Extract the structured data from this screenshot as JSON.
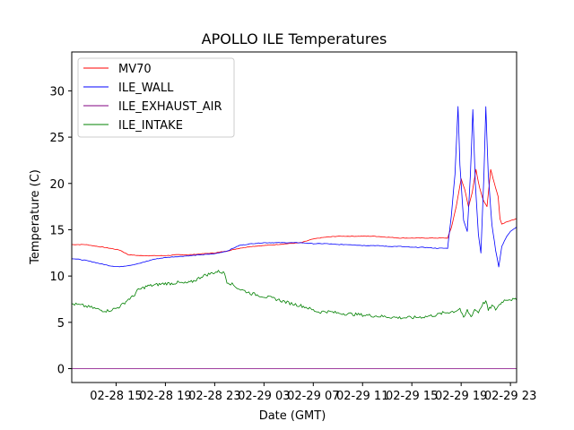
{
  "chart_data": {
    "type": "line",
    "title": "APOLLO ILE Temperatures",
    "xlabel": "Date (GMT)",
    "ylabel": "Temperature (C)",
    "x_unit": "hours since 02-28 00:00 GMT",
    "xlim": [
      11.4,
      47.5
    ],
    "ylim": [
      -1.5,
      34.2
    ],
    "xticks": [
      {
        "value": 15,
        "label": "02-28 15"
      },
      {
        "value": 19,
        "label": "02-28 19"
      },
      {
        "value": 23,
        "label": "02-28 23"
      },
      {
        "value": 27,
        "label": "02-29 03"
      },
      {
        "value": 31,
        "label": "02-29 07"
      },
      {
        "value": 35,
        "label": "02-29 11"
      },
      {
        "value": 39,
        "label": "02-29 15"
      },
      {
        "value": 43,
        "label": "02-29 19"
      },
      {
        "value": 47,
        "label": "02-29 23"
      }
    ],
    "yticks": [
      0,
      5,
      10,
      15,
      20,
      25,
      30
    ],
    "legend_position": "top-left",
    "series": [
      {
        "name": "MV70",
        "color": "#ff0000",
        "points": [
          [
            11.4,
            13.4
          ],
          [
            12.5,
            13.4
          ],
          [
            13.5,
            13.2
          ],
          [
            14.5,
            13.0
          ],
          [
            15.3,
            12.8
          ],
          [
            16.0,
            12.3
          ],
          [
            17.0,
            12.2
          ],
          [
            18.0,
            12.2
          ],
          [
            19.0,
            12.2
          ],
          [
            20.0,
            12.3
          ],
          [
            21.0,
            12.3
          ],
          [
            22.0,
            12.4
          ],
          [
            23.0,
            12.5
          ],
          [
            24.0,
            12.7
          ],
          [
            25.0,
            13.0
          ],
          [
            26.0,
            13.2
          ],
          [
            27.0,
            13.3
          ],
          [
            28.0,
            13.4
          ],
          [
            29.0,
            13.5
          ],
          [
            30.0,
            13.6
          ],
          [
            31.0,
            14.0
          ],
          [
            32.0,
            14.2
          ],
          [
            33.0,
            14.3
          ],
          [
            34.0,
            14.3
          ],
          [
            35.0,
            14.3
          ],
          [
            36.0,
            14.3
          ],
          [
            37.0,
            14.2
          ],
          [
            38.0,
            14.1
          ],
          [
            39.0,
            14.1
          ],
          [
            40.0,
            14.1
          ],
          [
            41.0,
            14.1
          ],
          [
            41.9,
            14.1
          ],
          [
            42.2,
            15.2
          ],
          [
            42.6,
            17.5
          ],
          [
            43.0,
            20.5
          ],
          [
            43.3,
            19.3
          ],
          [
            43.6,
            17.5
          ],
          [
            43.9,
            19.0
          ],
          [
            44.2,
            21.5
          ],
          [
            44.5,
            19.5
          ],
          [
            44.8,
            18.2
          ],
          [
            45.1,
            17.5
          ],
          [
            45.4,
            21.5
          ],
          [
            45.7,
            20.0
          ],
          [
            46.0,
            18.6
          ],
          [
            46.15,
            16.2
          ],
          [
            46.3,
            15.6
          ],
          [
            46.6,
            15.8
          ],
          [
            47.0,
            16.0
          ],
          [
            47.5,
            16.2
          ]
        ]
      },
      {
        "name": "ILE_WALL",
        "color": "#0000ff",
        "points": [
          [
            11.4,
            11.9
          ],
          [
            12.5,
            11.7
          ],
          [
            13.5,
            11.4
          ],
          [
            14.5,
            11.1
          ],
          [
            15.3,
            11.0
          ],
          [
            16.3,
            11.2
          ],
          [
            17.0,
            11.4
          ],
          [
            18.0,
            11.8
          ],
          [
            19.0,
            12.0
          ],
          [
            20.0,
            12.1
          ],
          [
            21.0,
            12.2
          ],
          [
            22.0,
            12.3
          ],
          [
            23.0,
            12.4
          ],
          [
            24.0,
            12.7
          ],
          [
            25.0,
            13.3
          ],
          [
            26.0,
            13.5
          ],
          [
            27.0,
            13.6
          ],
          [
            28.0,
            13.6
          ],
          [
            29.0,
            13.6
          ],
          [
            30.0,
            13.6
          ],
          [
            31.0,
            13.5
          ],
          [
            32.0,
            13.5
          ],
          [
            33.0,
            13.4
          ],
          [
            34.0,
            13.4
          ],
          [
            35.0,
            13.3
          ],
          [
            36.0,
            13.3
          ],
          [
            37.0,
            13.2
          ],
          [
            38.0,
            13.2
          ],
          [
            39.0,
            13.1
          ],
          [
            40.0,
            13.1
          ],
          [
            41.0,
            13.0
          ],
          [
            41.9,
            13.0
          ],
          [
            42.2,
            16.5
          ],
          [
            42.5,
            21.0
          ],
          [
            42.75,
            28.3
          ],
          [
            42.9,
            22.0
          ],
          [
            43.2,
            16.0
          ],
          [
            43.5,
            14.8
          ],
          [
            43.75,
            21.0
          ],
          [
            43.95,
            28.0
          ],
          [
            44.15,
            20.0
          ],
          [
            44.4,
            14.5
          ],
          [
            44.6,
            12.5
          ],
          [
            44.85,
            21.0
          ],
          [
            45.0,
            28.3
          ],
          [
            45.2,
            21.0
          ],
          [
            45.5,
            15.5
          ],
          [
            45.8,
            12.8
          ],
          [
            46.05,
            11.0
          ],
          [
            46.3,
            13.2
          ],
          [
            46.7,
            14.3
          ],
          [
            47.0,
            14.8
          ],
          [
            47.5,
            15.3
          ]
        ]
      },
      {
        "name": "ILE_EXHAUST_AIR",
        "color": "#800080",
        "points": [
          [
            11.4,
            0.0
          ],
          [
            47.5,
            0.0
          ]
        ]
      },
      {
        "name": "ILE_INTAKE",
        "color": "#008000",
        "points": [
          [
            11.4,
            7.0
          ],
          [
            12.3,
            6.8
          ],
          [
            13.0,
            6.6
          ],
          [
            13.8,
            6.3
          ],
          [
            14.3,
            6.25
          ],
          [
            15.0,
            6.5
          ],
          [
            15.5,
            6.9
          ],
          [
            16.0,
            7.5
          ],
          [
            16.4,
            7.8
          ],
          [
            16.7,
            8.4
          ],
          [
            17.0,
            8.6
          ],
          [
            17.5,
            8.9
          ],
          [
            18.0,
            9.0
          ],
          [
            18.5,
            9.1
          ],
          [
            19.0,
            9.2
          ],
          [
            19.5,
            9.2
          ],
          [
            20.0,
            9.3
          ],
          [
            20.5,
            9.2
          ],
          [
            21.0,
            9.3
          ],
          [
            21.5,
            9.6
          ],
          [
            22.0,
            10.0
          ],
          [
            22.5,
            10.2
          ],
          [
            23.0,
            10.4
          ],
          [
            23.4,
            10.5
          ],
          [
            23.8,
            10.3
          ],
          [
            24.0,
            9.4
          ],
          [
            24.3,
            9.2
          ],
          [
            25.0,
            8.6
          ],
          [
            26.0,
            8.1
          ],
          [
            27.0,
            7.8
          ],
          [
            28.0,
            7.5
          ],
          [
            29.0,
            7.1
          ],
          [
            30.0,
            6.8
          ],
          [
            30.5,
            6.6
          ],
          [
            31.0,
            6.3
          ],
          [
            31.5,
            6.1
          ],
          [
            32.0,
            6.2
          ],
          [
            33.0,
            6.0
          ],
          [
            34.0,
            5.9
          ],
          [
            35.0,
            5.8
          ],
          [
            36.0,
            5.7
          ],
          [
            37.0,
            5.6
          ],
          [
            38.0,
            5.5
          ],
          [
            39.0,
            5.5
          ],
          [
            40.0,
            5.6
          ],
          [
            41.0,
            5.8
          ],
          [
            41.5,
            6.0
          ],
          [
            42.0,
            6.1
          ],
          [
            42.5,
            6.2
          ],
          [
            42.9,
            6.5
          ],
          [
            43.2,
            5.4
          ],
          [
            43.5,
            6.3
          ],
          [
            43.8,
            5.6
          ],
          [
            44.1,
            6.4
          ],
          [
            44.4,
            6.1
          ],
          [
            44.7,
            6.9
          ],
          [
            45.0,
            7.3
          ],
          [
            45.2,
            6.3
          ],
          [
            45.5,
            6.8
          ],
          [
            45.8,
            6.4
          ],
          [
            46.1,
            6.9
          ],
          [
            46.4,
            7.3
          ],
          [
            46.7,
            7.5
          ],
          [
            47.0,
            7.5
          ],
          [
            47.5,
            7.4
          ]
        ]
      }
    ]
  }
}
